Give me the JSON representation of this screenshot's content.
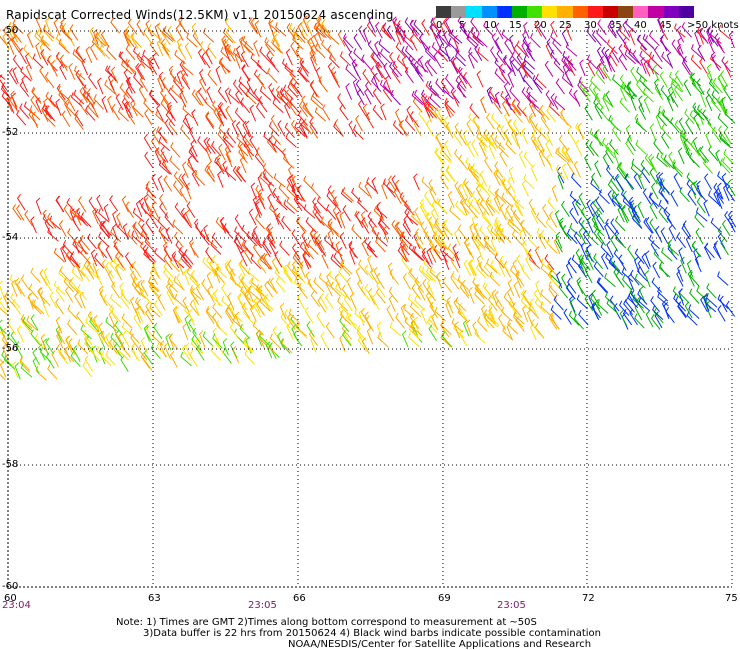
{
  "title": "Rapidscat Corrected Winds(12.5KM) v1.1 20150624 ascending",
  "colorbar": {
    "colors": [
      "#3c3c3c",
      "#9a9a9a",
      "#00e0ff",
      "#0090ff",
      "#0030ff",
      "#00b000",
      "#40e000",
      "#ffe000",
      "#ffb000",
      "#ff6000",
      "#ff1a1a",
      "#c80000",
      "#8b4513",
      "#ff60c0",
      "#c000a0",
      "#8000c0",
      "#5000a0"
    ],
    "ticks": [
      "0",
      "5",
      "10",
      "15",
      "20",
      "25",
      "30",
      "35",
      "40",
      "45"
    ],
    "unit": ">50 knots"
  },
  "lat_labels": [
    "-50",
    "-52",
    "-54",
    "-56",
    "-58",
    "-60"
  ],
  "lon_labels": [
    "60",
    "63",
    "66",
    "69",
    "72",
    "75"
  ],
  "time_labels": [
    "23:04",
    "23:05",
    "23:05"
  ],
  "notes": {
    "line1": "Note: 1) Times are GMT 2)Times along bottom correspond to measurement at ~50S",
    "line2": "3)Data buffer is 22 hrs from 20150624 4) Black wind barbs indicate possible contamination",
    "line3": "NOAA/NESDIS/Center for Satellite Applications and Research"
  },
  "wind_field": {
    "description_regions": [
      {
        "name": "north-band",
        "speed_knots": [
          28,
          40
        ],
        "direction_deg": 250
      },
      {
        "name": "central",
        "speed_knots": [
          24,
          33
        ],
        "direction_deg": 240
      },
      {
        "name": "south-west",
        "speed_knots": [
          18,
          24
        ],
        "direction_deg": 235
      },
      {
        "name": "south-east",
        "speed_knots": [
          8,
          18
        ],
        "direction_deg": 200
      }
    ]
  }
}
